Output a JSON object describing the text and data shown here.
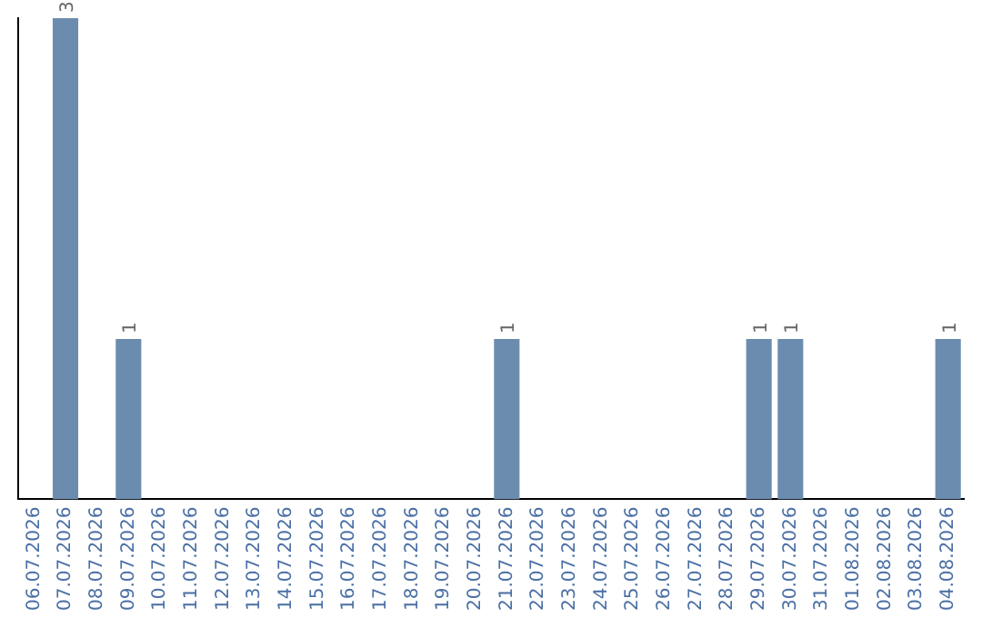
{
  "chart_data": {
    "type": "bar",
    "categories": [
      "06.07.2026",
      "07.07.2026",
      "08.07.2026",
      "09.07.2026",
      "10.07.2026",
      "11.07.2026",
      "12.07.2026",
      "13.07.2026",
      "14.07.2026",
      "15.07.2026",
      "16.07.2026",
      "17.07.2026",
      "18.07.2026",
      "19.07.2026",
      "20.07.2026",
      "21.07.2026",
      "22.07.2026",
      "23.07.2026",
      "24.07.2026",
      "25.07.2026",
      "26.07.2026",
      "27.07.2026",
      "28.07.2026",
      "29.07.2026",
      "30.07.2026",
      "31.07.2026",
      "01.08.2026",
      "02.08.2026",
      "03.08.2026",
      "04.08.2026"
    ],
    "values": [
      0,
      3,
      0,
      1,
      0,
      0,
      0,
      0,
      0,
      0,
      0,
      0,
      0,
      0,
      0,
      1,
      0,
      0,
      0,
      0,
      0,
      0,
      0,
      1,
      1,
      0,
      0,
      0,
      0,
      1
    ],
    "value_labels": [
      null,
      "3",
      null,
      "1",
      null,
      null,
      null,
      null,
      null,
      null,
      null,
      null,
      null,
      null,
      null,
      "1",
      null,
      null,
      null,
      null,
      null,
      null,
      null,
      "1",
      "1",
      null,
      null,
      null,
      null,
      "1"
    ],
    "color": "#6b8cae",
    "ylim": [
      0,
      3
    ],
    "tick_labels": "x",
    "grid": false,
    "legend": false
  }
}
